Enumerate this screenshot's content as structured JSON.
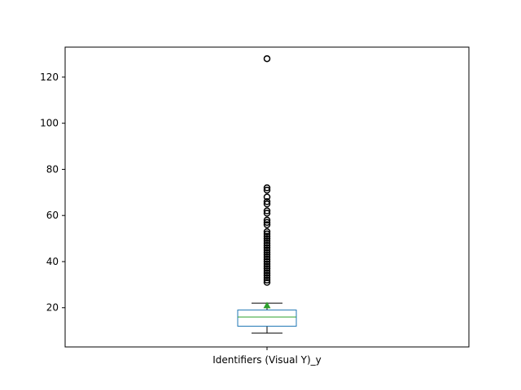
{
  "chart_data": {
    "type": "box",
    "category": "Identifiers (Visual Y)_y",
    "ylim": [
      3,
      133
    ],
    "y_ticks": [
      20,
      40,
      60,
      80,
      100,
      120
    ],
    "grid": false,
    "stats": {
      "whisker_low": 9,
      "q1": 12,
      "median": 16,
      "q3": 19,
      "whisker_high": 22,
      "mean": 21
    },
    "outliers": [
      31,
      32,
      33,
      34,
      35,
      36,
      37,
      38,
      39,
      40,
      41,
      42,
      43,
      44,
      45,
      46,
      47,
      48,
      49,
      50,
      51,
      52,
      53,
      56,
      57,
      58,
      61,
      62,
      65,
      66,
      68,
      71,
      72,
      128
    ],
    "colors": {
      "box": "#1f77b4",
      "median": "#2ca02c",
      "mean_marker": "#2ca02c",
      "whisker": "#000000",
      "outlier": "#000000"
    }
  }
}
